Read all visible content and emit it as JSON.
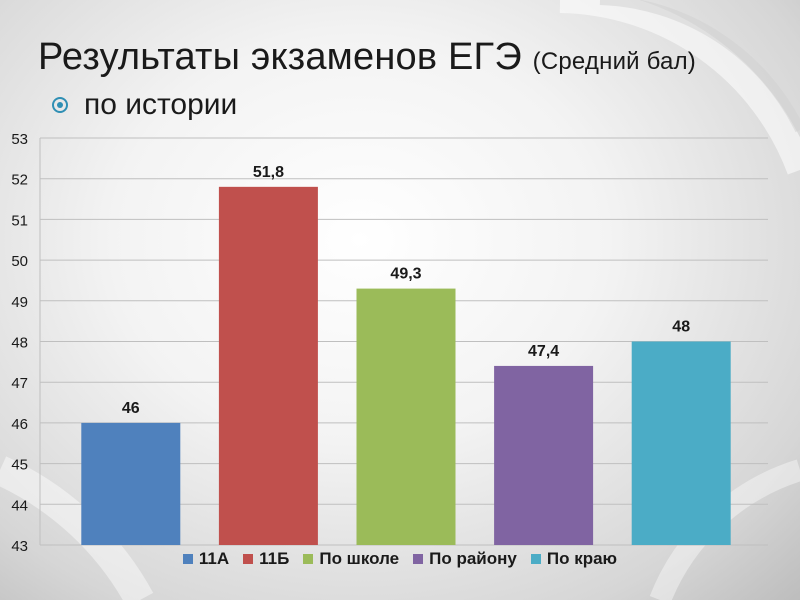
{
  "title": "Результаты экзаменов ЕГЭ",
  "subtitle": "(Средний бал)",
  "bullet_text": "по истории",
  "colors": {
    "accent": "#2f8fb4",
    "gridline": "#bfbfbf",
    "series": [
      "#4f81bd",
      "#c0504d",
      "#9bbb59",
      "#8064a2",
      "#4bacc6"
    ]
  },
  "chart_data": {
    "type": "bar",
    "categories": [
      "11А",
      "11Б",
      "По школе",
      "По району",
      "По краю"
    ],
    "values": [
      46,
      51.8,
      49.3,
      47.4,
      48
    ],
    "data_labels": [
      "46",
      "51,8",
      "49,3",
      "47,4",
      "48"
    ],
    "ylim": [
      43,
      53
    ],
    "y_ticks": [
      "43",
      "44",
      "45",
      "46",
      "47",
      "48",
      "49",
      "50",
      "51",
      "52",
      "53"
    ],
    "grid": true,
    "legend_position": "bottom",
    "title": "",
    "xlabel": "",
    "ylabel": ""
  }
}
